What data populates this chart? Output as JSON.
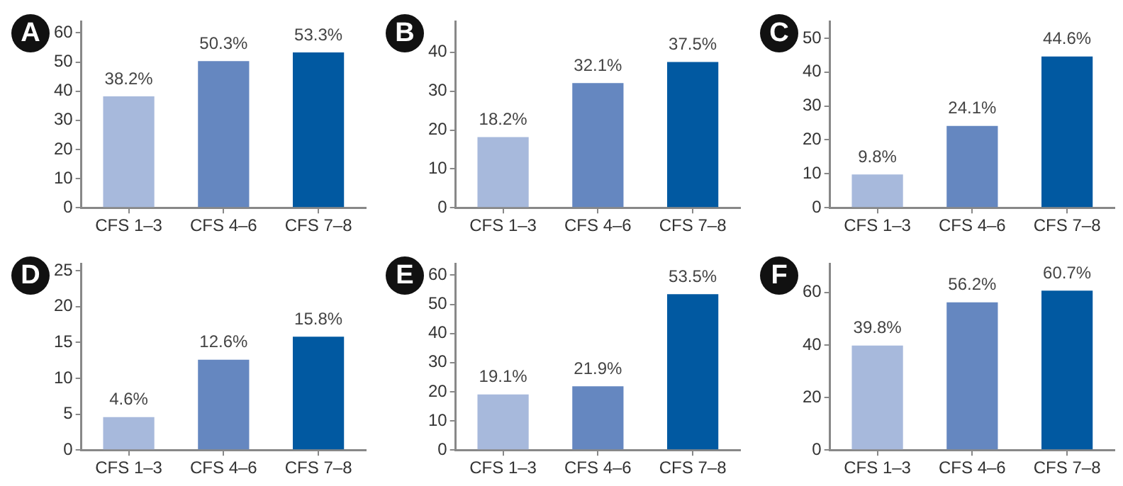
{
  "chart_data": [
    {
      "type": "bar",
      "title": "A",
      "categories": [
        "CFS 1–3",
        "CFS 4–6",
        "CFS 7–8"
      ],
      "values": [
        38.2,
        50.3,
        53.3
      ],
      "colors": [
        "#a7b9dc",
        "#6587c0",
        "#0159a1"
      ],
      "value_labels": [
        "38.2%",
        "50.3%",
        "53.3%"
      ],
      "ylim": [
        0,
        64
      ],
      "yticks": [
        0,
        10,
        20,
        30,
        40,
        50,
        60
      ],
      "grid": false,
      "legend": false
    },
    {
      "type": "bar",
      "title": "B",
      "categories": [
        "CFS 1–3",
        "CFS 4–6",
        "CFS 7–8"
      ],
      "values": [
        18.2,
        32.1,
        37.5
      ],
      "colors": [
        "#a7b9dc",
        "#6587c0",
        "#0159a1"
      ],
      "value_labels": [
        "18.2%",
        "32.1%",
        "37.5%"
      ],
      "ylim": [
        0,
        48
      ],
      "yticks": [
        0,
        10,
        20,
        30,
        40
      ],
      "grid": false,
      "legend": false
    },
    {
      "type": "bar",
      "title": "C",
      "categories": [
        "CFS 1–3",
        "CFS 4–6",
        "CFS 7–8"
      ],
      "values": [
        9.8,
        24.1,
        44.6
      ],
      "colors": [
        "#a7b9dc",
        "#6587c0",
        "#0159a1"
      ],
      "value_labels": [
        "9.8%",
        "24.1%",
        "44.6%"
      ],
      "ylim": [
        0,
        55
      ],
      "yticks": [
        0,
        10,
        20,
        30,
        40,
        50
      ],
      "grid": false,
      "legend": false
    },
    {
      "type": "bar",
      "title": "D",
      "categories": [
        "CFS 1–3",
        "CFS 4–6",
        "CFS 7–8"
      ],
      "values": [
        4.6,
        12.6,
        15.8
      ],
      "colors": [
        "#a7b9dc",
        "#6587c0",
        "#0159a1"
      ],
      "value_labels": [
        "4.6%",
        "12.6%",
        "15.8%"
      ],
      "ylim": [
        0,
        26
      ],
      "yticks": [
        0,
        5,
        10,
        15,
        20,
        25
      ],
      "grid": false,
      "legend": false
    },
    {
      "type": "bar",
      "title": "E",
      "categories": [
        "CFS 1–3",
        "CFS 4–6",
        "CFS 7–8"
      ],
      "values": [
        19.1,
        21.9,
        53.5
      ],
      "colors": [
        "#a7b9dc",
        "#6587c0",
        "#0159a1"
      ],
      "value_labels": [
        "19.1%",
        "21.9%",
        "53.5%"
      ],
      "ylim": [
        0,
        64
      ],
      "yticks": [
        0,
        10,
        20,
        30,
        40,
        50,
        60
      ],
      "grid": false,
      "legend": false
    },
    {
      "type": "bar",
      "title": "F",
      "categories": [
        "CFS 1–3",
        "CFS 4–6",
        "CFS 7–8"
      ],
      "values": [
        39.8,
        56.2,
        60.7
      ],
      "colors": [
        "#a7b9dc",
        "#6587c0",
        "#0159a1"
      ],
      "value_labels": [
        "39.8%",
        "56.2%",
        "60.7%"
      ],
      "ylim": [
        0,
        71
      ],
      "yticks": [
        0,
        20,
        40,
        60
      ],
      "grid": false,
      "legend": false
    }
  ]
}
